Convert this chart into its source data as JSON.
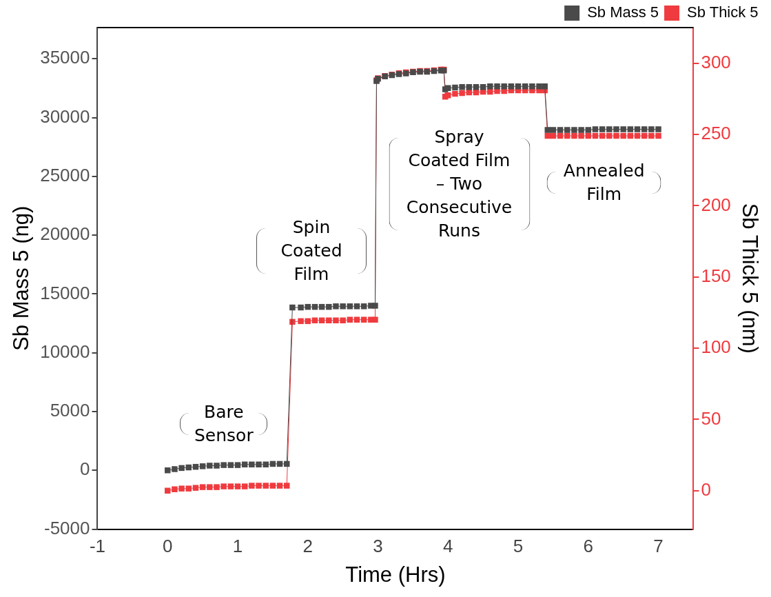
{
  "chart_data": {
    "type": "line",
    "xlabel": "Time (Hrs)",
    "ylabel": "Sb Mass 5 (ng)",
    "y2label": "Sb Thick 5 (nm)",
    "x": [
      0,
      0.1,
      0.2,
      0.3,
      0.4,
      0.5,
      0.6,
      0.7,
      0.8,
      0.9,
      1.0,
      1.1,
      1.2,
      1.3,
      1.4,
      1.5,
      1.6,
      1.7,
      1.78,
      1.9,
      2.0,
      2.1,
      2.2,
      2.3,
      2.4,
      2.5,
      2.6,
      2.7,
      2.8,
      2.9,
      2.96,
      2.98,
      3.0,
      3.1,
      3.2,
      3.3,
      3.4,
      3.5,
      3.6,
      3.7,
      3.8,
      3.9,
      3.94,
      3.96,
      4.0,
      4.1,
      4.2,
      4.3,
      4.4,
      4.5,
      4.6,
      4.7,
      4.8,
      4.9,
      5.0,
      5.1,
      5.2,
      5.3,
      5.38,
      5.42,
      5.5,
      5.6,
      5.7,
      5.8,
      5.9,
      6.0,
      6.1,
      6.2,
      6.3,
      6.4,
      6.5,
      6.6,
      6.7,
      6.8,
      6.9,
      7.0
    ],
    "series": [
      {
        "name": "Sb Mass 5",
        "color": "#4a4a4a",
        "values": [
          0,
          100,
          200,
          250,
          300,
          350,
          400,
          400,
          450,
          450,
          450,
          500,
          500,
          500,
          500,
          550,
          550,
          550,
          13850,
          13850,
          13900,
          13900,
          13900,
          13900,
          13950,
          13950,
          13950,
          13950,
          13950,
          14000,
          14000,
          33100,
          33300,
          33500,
          33600,
          33700,
          33750,
          33850,
          33900,
          33900,
          33950,
          34000,
          34000,
          32400,
          32500,
          32550,
          32600,
          32600,
          32600,
          32600,
          32650,
          32650,
          32650,
          32650,
          32650,
          32650,
          32650,
          32650,
          32650,
          28950,
          28950,
          28950,
          28950,
          28950,
          28950,
          28950,
          29000,
          29000,
          29000,
          29000,
          29000,
          29000,
          29000,
          29000,
          29000,
          29000
        ]
      },
      {
        "name": "Sb Thick 5",
        "color": "#ef3b3f",
        "axis": "y2",
        "values": [
          0,
          1,
          1.5,
          1.5,
          2,
          2.5,
          2.5,
          2.5,
          3,
          3,
          3,
          3,
          3.5,
          3.5,
          3.5,
          3.5,
          3.5,
          3.5,
          118.5,
          119,
          119,
          119.5,
          119.5,
          119.5,
          119.5,
          119.5,
          120,
          120,
          120,
          120,
          120,
          288,
          289.5,
          291,
          292,
          293,
          293.5,
          294,
          294.5,
          294.5,
          295,
          295.5,
          295.5,
          276.5,
          277.5,
          278.5,
          279,
          279.5,
          279.5,
          280,
          280,
          280.5,
          280.5,
          281,
          281,
          281,
          281,
          281,
          281,
          249,
          249,
          249,
          249,
          249,
          249,
          249,
          249,
          249,
          249,
          249,
          249,
          249,
          249,
          249,
          249,
          249
        ]
      }
    ],
    "xlim": [
      -1,
      7.5
    ],
    "xticks": [
      -1,
      0,
      1,
      2,
      3,
      4,
      5,
      6,
      7
    ],
    "ylim": [
      -5000,
      37650
    ],
    "yticks": [
      -5000,
      0,
      5000,
      10000,
      15000,
      20000,
      25000,
      30000,
      35000
    ],
    "y2lim": [
      -27,
      325
    ],
    "y2ticks": [
      0,
      50,
      100,
      150,
      200,
      250,
      300
    ],
    "legend": "top right",
    "marker": "square",
    "annotations": [
      "Bare Sensor",
      "Spin Coated Film",
      "Spray Coated Film – Two Consecutive Runs",
      "Annealed Film"
    ]
  }
}
